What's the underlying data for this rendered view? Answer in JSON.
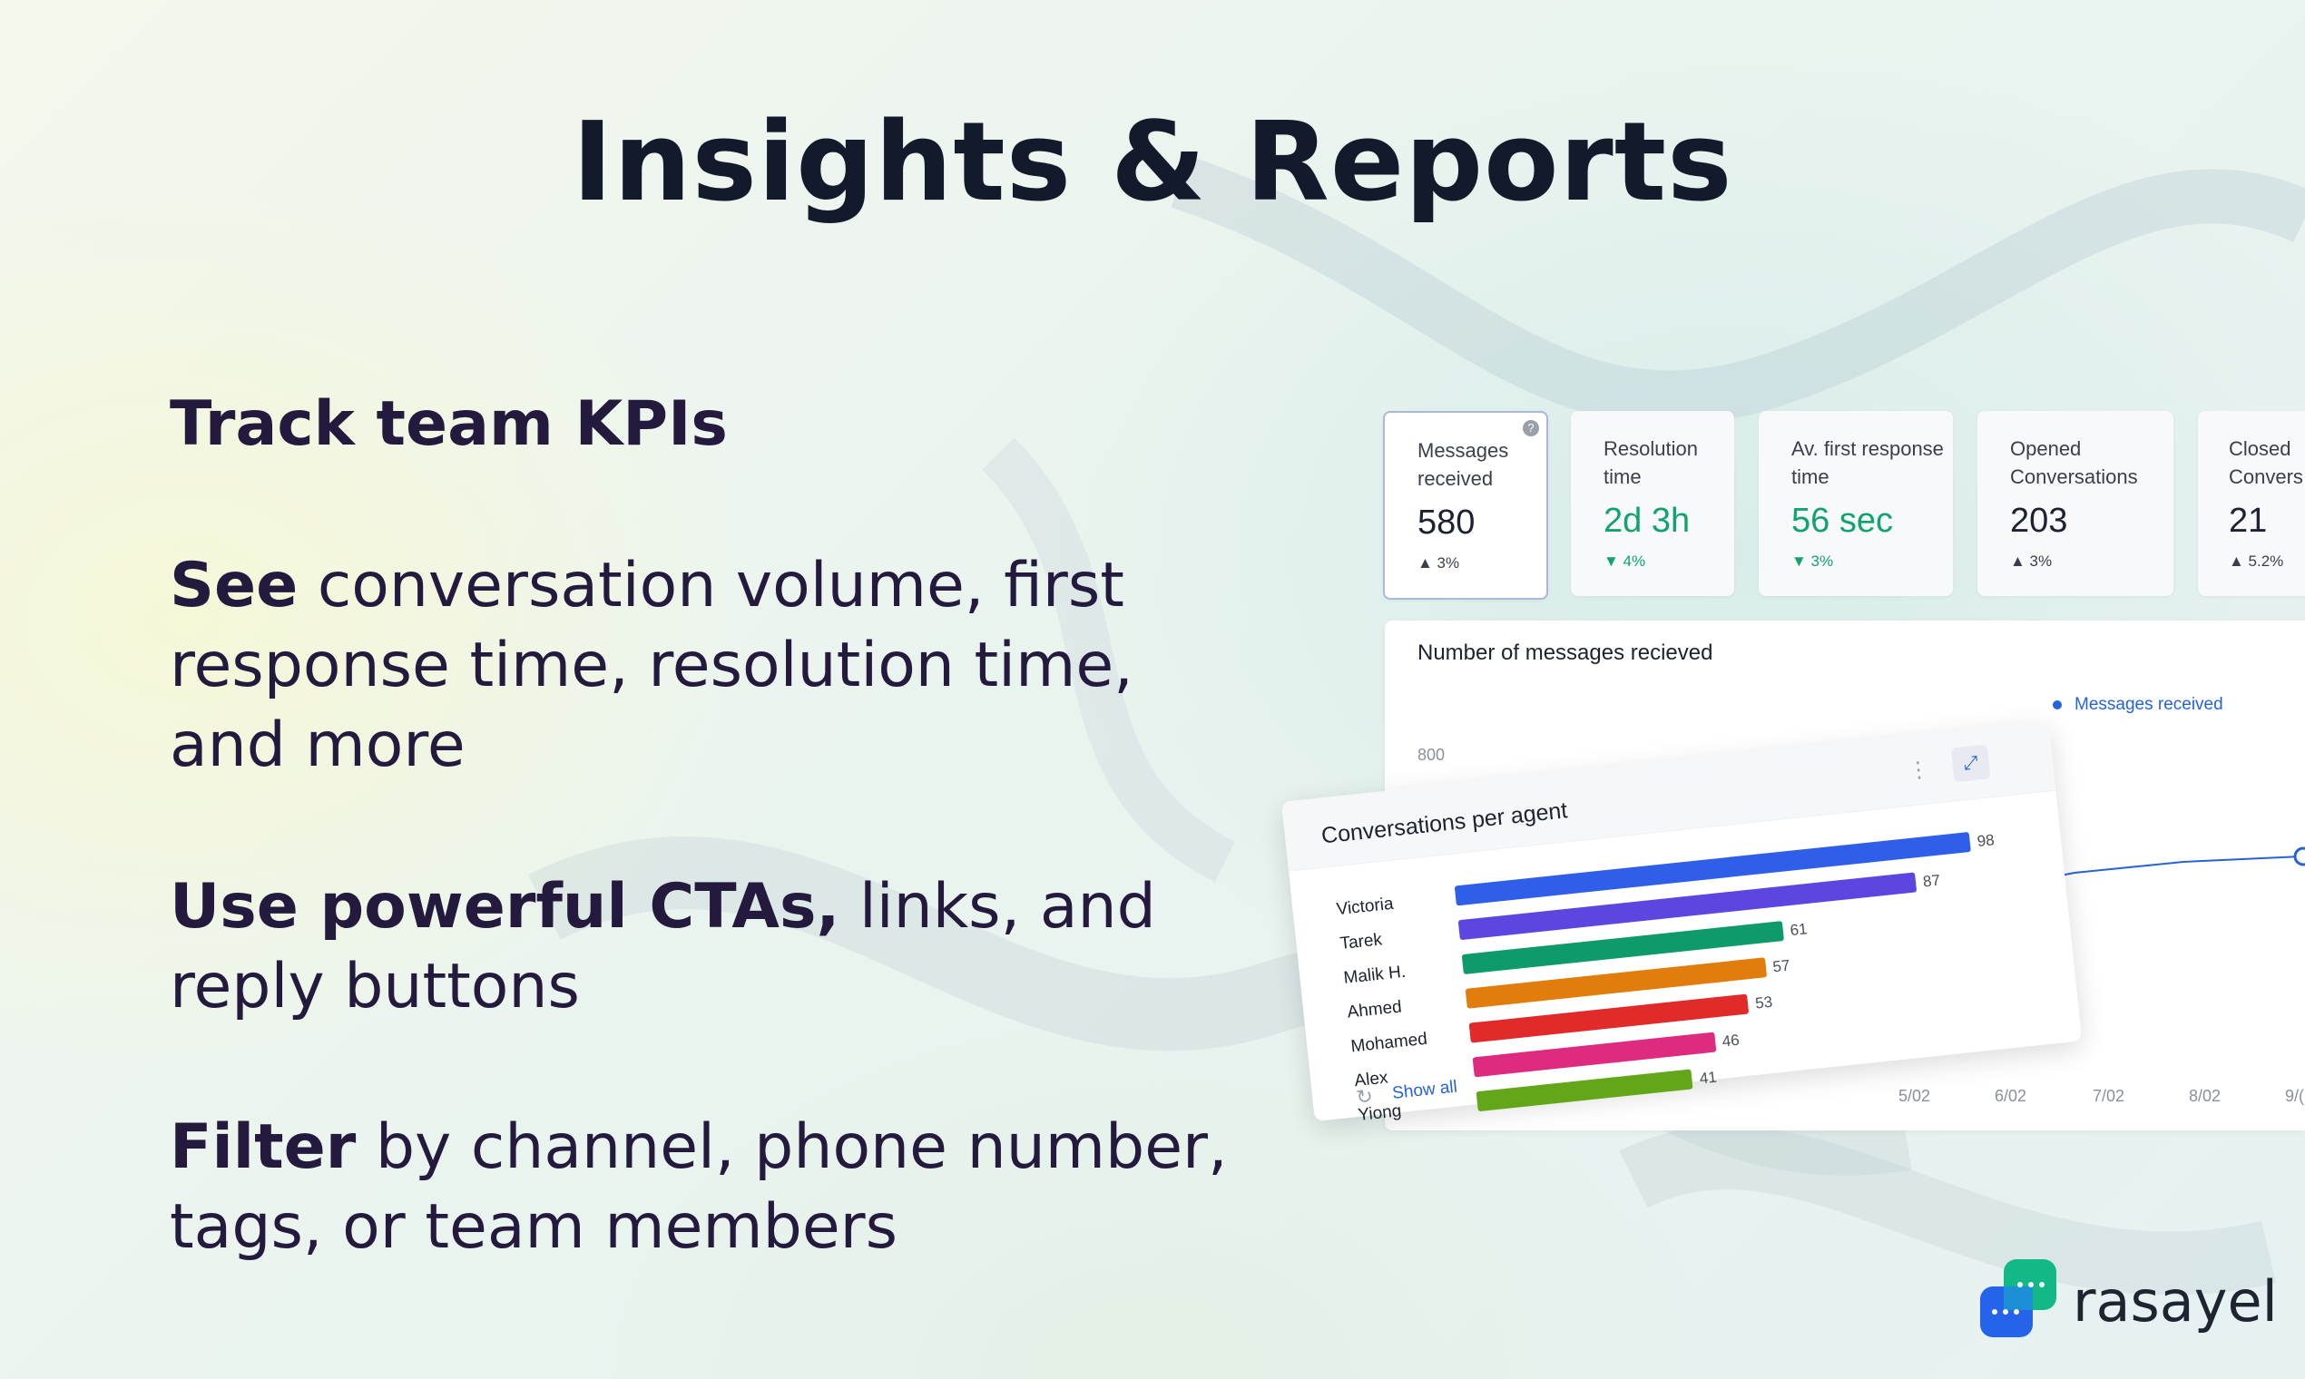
{
  "title": "Insights & Reports",
  "left": {
    "heading": "Track team KPIs",
    "p1_bold": "See",
    "p1_rest": " conversation volume, first response time, resolution time, and more",
    "p2_bold": "Use powerful CTAs,",
    "p2_rest": " links, and reply buttons",
    "p3_bold": "Filter",
    "p3_rest": " by channel, phone number, tags, or team members"
  },
  "cards": [
    {
      "label": "Messages received",
      "value": "580",
      "delta": "▲ 3%",
      "trend": "up",
      "help": "?"
    },
    {
      "label": "Resolution time",
      "value": "2d 3h",
      "delta": "▼ 4%",
      "trend": "down"
    },
    {
      "label": "Av. first response time",
      "value": "56 sec",
      "delta": "▼ 3%",
      "trend": "down"
    },
    {
      "label": "Opened Conversations",
      "value": "203",
      "delta": "▲ 3%",
      "trend": "up"
    },
    {
      "label": "Closed Convers",
      "value": "21",
      "delta": "▲ 5.2%",
      "trend": "up"
    }
  ],
  "line_chart": {
    "title": "Number of messages recieved",
    "legend": "Messages received",
    "ytick": "800",
    "xticks": [
      "5/02",
      "6/02",
      "7/02",
      "8/02",
      "9/("
    ],
    "color": "#2563d9"
  },
  "bar_chart": {
    "title": "Conversations per agent",
    "show_all": "Show all",
    "kebab": "⋮",
    "expand": "⤢"
  },
  "chart_data": {
    "type": "bar",
    "title": "Conversations per agent",
    "categories": [
      "Victoria",
      "Tarek",
      "Malik H.",
      "Ahmed",
      "Mohamed",
      "Alex",
      "Yiong"
    ],
    "values": [
      98,
      87,
      61,
      57,
      53,
      46,
      41
    ],
    "colors": [
      "#2f5ee8",
      "#5b47e0",
      "#0f9a6b",
      "#e17d0c",
      "#e12a2a",
      "#dd2b80",
      "#63a619"
    ],
    "orientation": "horizontal"
  },
  "logo": {
    "text": "rasayel",
    "primary": "#2563eb",
    "secondary": "#12b886"
  }
}
